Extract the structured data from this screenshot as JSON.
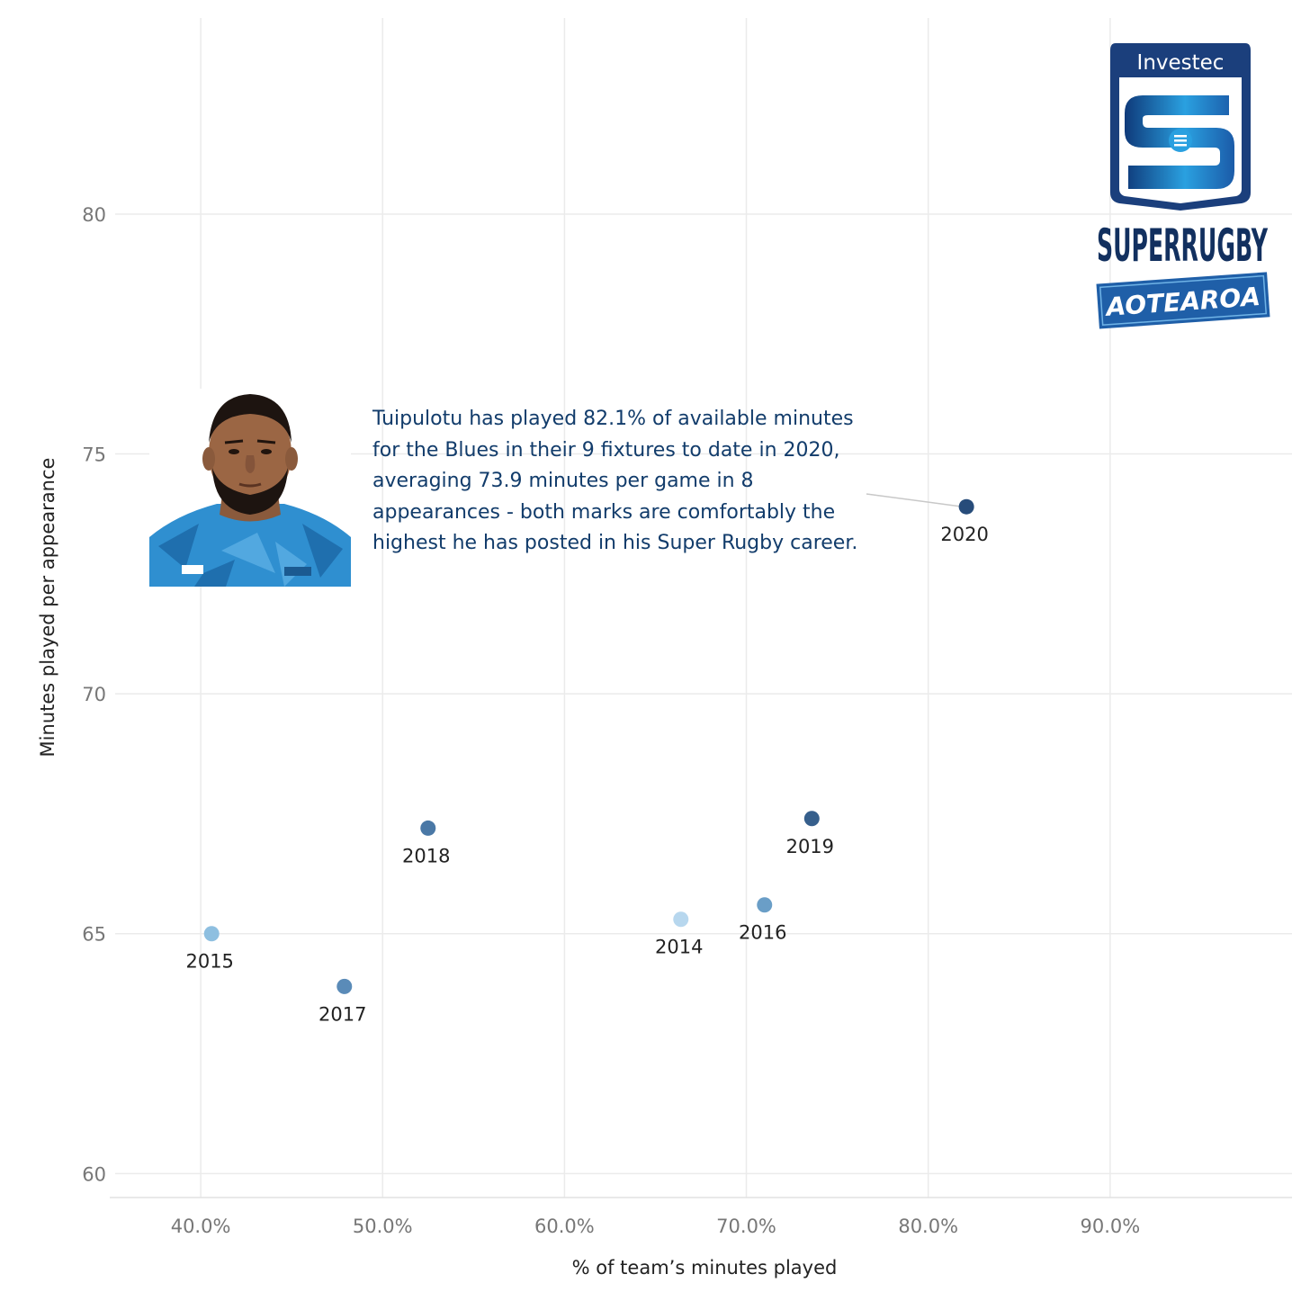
{
  "chart_data": {
    "type": "scatter",
    "xlabel": "% of team’s minutes played",
    "ylabel": "Minutes played per appearance",
    "xlim": [
      35,
      100
    ],
    "ylim": [
      59.5,
      84.2
    ],
    "x_ticks": [
      40,
      50,
      60,
      70,
      80,
      90
    ],
    "x_tick_labels": [
      "40.0%",
      "50.0%",
      "60.0%",
      "70.0%",
      "80.0%",
      "90.0%"
    ],
    "y_ticks": [
      60,
      65,
      70,
      75,
      80
    ],
    "y_tick_labels": [
      "60",
      "65",
      "70",
      "75",
      "80"
    ],
    "grid": true,
    "points": [
      {
        "label": "2014",
        "x": 66.4,
        "y": 65.3,
        "color": "#b7d7ee"
      },
      {
        "label": "2015",
        "x": 40.6,
        "y": 65.0,
        "color": "#8ebfe0"
      },
      {
        "label": "2016",
        "x": 71.0,
        "y": 65.6,
        "color": "#6a9ec7"
      },
      {
        "label": "2017",
        "x": 47.9,
        "y": 63.9,
        "color": "#5a8bb8"
      },
      {
        "label": "2018",
        "x": 52.5,
        "y": 67.2,
        "color": "#4a78a6"
      },
      {
        "label": "2019",
        "x": 73.6,
        "y": 67.4,
        "color": "#365f8c"
      },
      {
        "label": "2020",
        "x": 82.1,
        "y": 73.9,
        "color": "#274c7a"
      }
    ]
  },
  "annotation": {
    "text": "Tuipulotu has played 82.1% of available minutes for the Blues in their 9 fixtures to date in 2020, averaging 73.9 minutes per game in 8 appearances - both marks are comfortably the highest he has posted in his Super Rugby career."
  },
  "logo": {
    "sponsor": "Investec",
    "title": "SUPERRUGBY",
    "subtitle": "AOTEAROA"
  },
  "colors": {
    "accent": "#274c7a",
    "annotation": "#123c6b",
    "grid": "#ebebeb"
  }
}
